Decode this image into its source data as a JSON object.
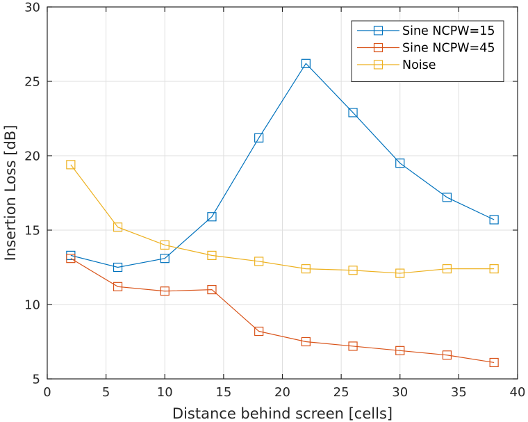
{
  "chart_data": {
    "type": "line",
    "title": "",
    "xlabel": "Distance behind screen [cells]",
    "ylabel": "Insertion Loss [dB]",
    "xlim": [
      0,
      40
    ],
    "ylim": [
      5,
      30
    ],
    "xticks": [
      0,
      5,
      10,
      15,
      20,
      25,
      30,
      35,
      40
    ],
    "yticks": [
      5,
      10,
      15,
      20,
      25,
      30
    ],
    "grid": true,
    "legend_position": "top-right",
    "marker": "square-open",
    "x": [
      2,
      6,
      10,
      14,
      18,
      22,
      26,
      30,
      34,
      38
    ],
    "series": [
      {
        "name": "Sine NCPW=15",
        "color": "#0072BD",
        "values": [
          13.3,
          12.5,
          13.1,
          15.9,
          21.2,
          26.2,
          22.9,
          19.5,
          17.2,
          15.7
        ]
      },
      {
        "name": "Sine NCPW=45",
        "color": "#D95319",
        "values": [
          13.1,
          11.2,
          10.9,
          11.0,
          8.2,
          7.5,
          7.2,
          6.9,
          6.6,
          6.1
        ]
      },
      {
        "name": "Noise",
        "color": "#EDB120",
        "values": [
          19.4,
          15.2,
          14.0,
          13.3,
          12.9,
          12.4,
          12.3,
          12.1,
          12.4,
          12.4
        ]
      }
    ]
  }
}
